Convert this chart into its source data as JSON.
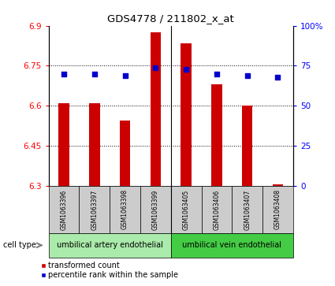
{
  "title": "GDS4778 / 211802_x_at",
  "samples": [
    "GSM1063396",
    "GSM1063397",
    "GSM1063398",
    "GSM1063399",
    "GSM1063405",
    "GSM1063406",
    "GSM1063407",
    "GSM1063408"
  ],
  "transformed_count": [
    6.61,
    6.61,
    6.545,
    6.875,
    6.835,
    6.68,
    6.6,
    6.305
  ],
  "percentile_rank": [
    70,
    70,
    69,
    74,
    73,
    70,
    69,
    68
  ],
  "bar_bottom": 6.3,
  "ylim_left": [
    6.3,
    6.9
  ],
  "ylim_right": [
    0,
    100
  ],
  "yticks_left": [
    6.3,
    6.45,
    6.6,
    6.75,
    6.9
  ],
  "yticks_right": [
    0,
    25,
    50,
    75,
    100
  ],
  "ytick_labels_left": [
    "6.3",
    "6.45",
    "6.6",
    "6.75",
    "6.9"
  ],
  "ytick_labels_right": [
    "0",
    "25",
    "50",
    "75",
    "100%"
  ],
  "bar_color": "#cc0000",
  "dot_color": "#0000cc",
  "group1_label": "umbilical artery endothelial",
  "group2_label": "umbilical vein endothelial",
  "group1_indices": [
    0,
    1,
    2,
    3
  ],
  "group2_indices": [
    4,
    5,
    6,
    7
  ],
  "cell_type_label": "cell type",
  "legend1": "transformed count",
  "legend2": "percentile rank within the sample",
  "bg_color": "#ffffff",
  "group_bg_color": "#cccccc",
  "group1_color": "#aaeaaa",
  "group2_color": "#44cc44",
  "bar_width": 0.35
}
